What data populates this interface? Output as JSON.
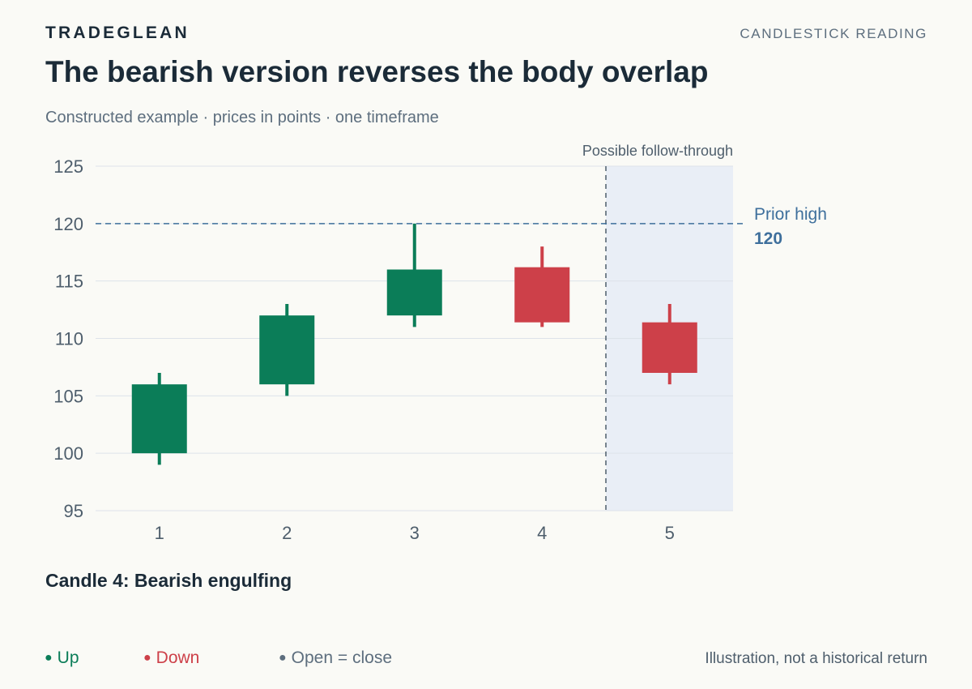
{
  "header": {
    "brand": "TRADEGLEAN",
    "section": "CANDLESTICK READING",
    "title": "The bearish version reverses the body overlap",
    "subtitle": "Constructed example · prices in points · one timeframe"
  },
  "chart_data": {
    "type": "candlestick",
    "ylim": [
      95,
      125
    ],
    "yticks": [
      95,
      100,
      105,
      110,
      115,
      120,
      125
    ],
    "grid": true,
    "candles": [
      {
        "x": "1",
        "open": 100,
        "high": 107,
        "low": 99,
        "close": 106,
        "direction": "up"
      },
      {
        "x": "2",
        "open": 106,
        "high": 113,
        "low": 105,
        "close": 112,
        "direction": "up"
      },
      {
        "x": "3",
        "open": 112,
        "high": 120,
        "low": 111,
        "close": 116,
        "direction": "up"
      },
      {
        "x": "4",
        "open": 116.2,
        "high": 118,
        "low": 111,
        "close": 111.4,
        "direction": "down"
      },
      {
        "x": "5",
        "open": 111.4,
        "high": 113,
        "low": 106,
        "close": 107,
        "direction": "down"
      }
    ],
    "reference_line": {
      "label": "Prior high",
      "value": 120,
      "value_label": "120"
    },
    "shaded_region": {
      "label": "Possible follow-through",
      "from_candle": "5"
    },
    "colors": {
      "up": "#0b7d58",
      "down": "#cd4049",
      "flat": "#5d6e7e",
      "reference": "#3e6f9c",
      "shade": "#e9eef6"
    }
  },
  "caption": "Candle 4: Bearish engulfing",
  "legend": {
    "up": "Up",
    "down": "Down",
    "flat": "Open = close"
  },
  "footnote": "Illustration, not a historical return"
}
